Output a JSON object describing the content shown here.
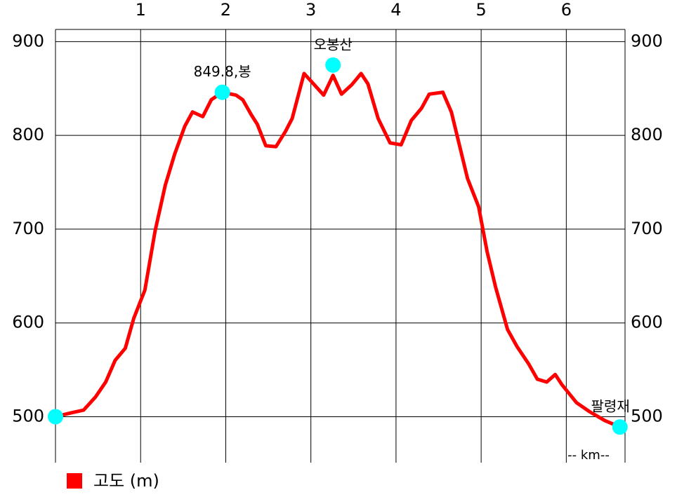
{
  "chart_data": {
    "type": "line",
    "x_label": "-- km--",
    "xlim": [
      0,
      6.69
    ],
    "ylim": [
      451,
      913
    ],
    "xticks": [
      1,
      2,
      3,
      4,
      5,
      6
    ],
    "yticks": [
      500,
      600,
      700,
      800,
      900
    ],
    "grid": true,
    "series": [
      {
        "name": "고도 (m)",
        "color": "#ff0000",
        "x": [
          0,
          0.18,
          0.33,
          0.47,
          0.59,
          0.7,
          0.82,
          0.92,
          1.05,
          1.17,
          1.29,
          1.4,
          1.52,
          1.61,
          1.73,
          1.83,
          1.96,
          2.12,
          2.2,
          2.3,
          2.37,
          2.47,
          2.59,
          2.7,
          2.78,
          2.92,
          3.03,
          3.15,
          3.26,
          3.36,
          3.48,
          3.59,
          3.67,
          3.79,
          3.93,
          4.06,
          4.18,
          4.3,
          4.39,
          4.55,
          4.65,
          4.84,
          4.97,
          5.07,
          5.17,
          5.31,
          5.42,
          5.56,
          5.66,
          5.77,
          5.87,
          5.95,
          6.12,
          6.28,
          6.45,
          6.63
        ],
        "values": [
          500,
          504,
          507,
          521,
          537,
          560,
          573,
          605,
          635,
          698,
          747,
          780,
          810,
          825,
          820,
          838,
          846,
          843,
          838,
          822,
          812,
          789,
          788,
          804,
          818,
          866,
          855,
          843,
          864,
          844,
          854,
          866,
          855,
          818,
          792,
          790,
          816,
          829,
          844,
          846,
          825,
          754,
          724,
          676,
          638,
          593,
          575,
          556,
          540,
          537,
          545,
          534,
          515,
          505,
          496,
          489
        ]
      }
    ],
    "waypoints": {
      "color": "#00ffff",
      "x": [
        0,
        1.96,
        3.26,
        6.63
      ],
      "values": [
        500,
        846,
        875,
        489
      ],
      "labels": [
        null,
        "849.8,봉",
        "오봉산",
        "팔령재"
      ]
    }
  }
}
